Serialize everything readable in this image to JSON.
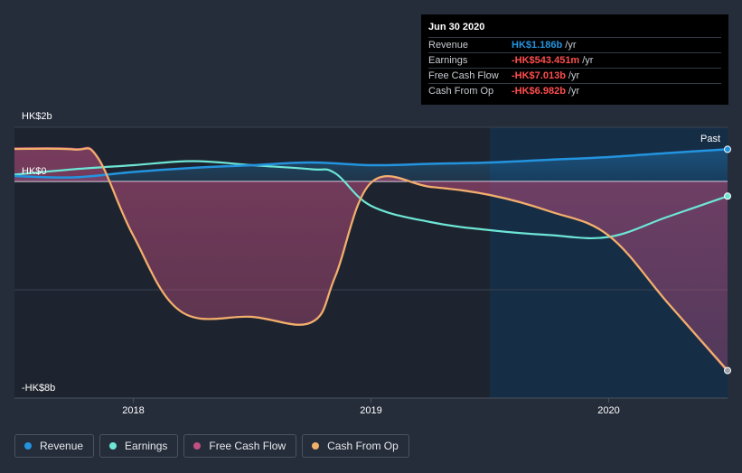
{
  "colors": {
    "revenue": "#2394df",
    "earnings": "#6de6d6",
    "free_cash_flow": "#c04f82",
    "cash_from_op": "#f0b06a",
    "negative": "#ff4d4d",
    "positive": "#2394df"
  },
  "tooltip": {
    "date": "Jun 30 2020",
    "rows": [
      {
        "label": "Revenue",
        "value": "HK$1.186b",
        "unit": "/yr",
        "color": "#2394df"
      },
      {
        "label": "Earnings",
        "value": "-HK$543.451m",
        "unit": "/yr",
        "color": "#ff4d4d"
      },
      {
        "label": "Free Cash Flow",
        "value": "-HK$7.013b",
        "unit": "/yr",
        "color": "#ff4d4d"
      },
      {
        "label": "Cash From Op",
        "value": "-HK$6.982b",
        "unit": "/yr",
        "color": "#ff4d4d"
      }
    ]
  },
  "legend": [
    {
      "label": "Revenue",
      "color": "#2394df"
    },
    {
      "label": "Earnings",
      "color": "#6de6d6"
    },
    {
      "label": "Free Cash Flow",
      "color": "#c04f82"
    },
    {
      "label": "Cash From Op",
      "color": "#f0b06a"
    }
  ],
  "chart_data": {
    "type": "line",
    "title": "",
    "unit": "HK$ billions",
    "ylim": [
      -8,
      2
    ],
    "xlim": [
      2017.5,
      2020.5
    ],
    "y_tick_labels": [
      {
        "value": 2,
        "label": "HK$2b"
      },
      {
        "value": 0,
        "label": "HK$0"
      },
      {
        "value": -8,
        "label": "-HK$8b"
      }
    ],
    "x_tick_labels": [
      {
        "value": 2018,
        "label": "2018"
      },
      {
        "value": 2019,
        "label": "2019"
      },
      {
        "value": 2020,
        "label": "2020"
      }
    ],
    "past_start": 2019.5,
    "past_label": "Past",
    "series": [
      {
        "name": "Revenue",
        "key": "revenue",
        "x": [
          2017.5,
          2017.75,
          2018.0,
          2018.25,
          2018.5,
          2018.75,
          2019.0,
          2019.25,
          2019.5,
          2019.75,
          2020.0,
          2020.25,
          2020.5
        ],
        "y": [
          0.2,
          0.15,
          0.35,
          0.5,
          0.6,
          0.7,
          0.6,
          0.65,
          0.7,
          0.8,
          0.9,
          1.05,
          1.186
        ]
      },
      {
        "name": "Earnings",
        "key": "earnings",
        "x": [
          2017.5,
          2017.75,
          2018.0,
          2018.25,
          2018.5,
          2018.75,
          2018.85,
          2019.0,
          2019.25,
          2019.5,
          2019.75,
          2020.0,
          2020.25,
          2020.5
        ],
        "y": [
          0.25,
          0.45,
          0.6,
          0.75,
          0.6,
          0.45,
          0.3,
          -0.9,
          -1.5,
          -1.8,
          -1.98,
          -2.05,
          -1.3,
          -0.543
        ]
      },
      {
        "name": "Free Cash Flow",
        "key": "free_cash_flow",
        "x": [
          2017.5,
          2017.75,
          2017.85,
          2018.0,
          2018.2,
          2018.5,
          2018.75,
          2018.85,
          2019.0,
          2019.25,
          2019.5,
          2019.75,
          2020.0,
          2020.25,
          2020.5
        ],
        "y": [
          1.22,
          1.2,
          0.9,
          -2.0,
          -4.8,
          -5.0,
          -5.2,
          -3.5,
          -0.05,
          -0.2,
          -0.5,
          -1.1,
          -2.0,
          -4.5,
          -7.013
        ]
      },
      {
        "name": "Cash From Op",
        "key": "cash_from_op",
        "x": [
          2017.5,
          2017.75,
          2017.85,
          2018.0,
          2018.2,
          2018.5,
          2018.75,
          2018.85,
          2019.0,
          2019.25,
          2019.5,
          2019.75,
          2020.0,
          2020.25,
          2020.5
        ],
        "y": [
          1.2,
          1.18,
          0.88,
          -2.0,
          -4.8,
          -5.0,
          -5.2,
          -3.5,
          -0.05,
          -0.2,
          -0.5,
          -1.1,
          -2.0,
          -4.5,
          -6.982
        ]
      }
    ]
  }
}
